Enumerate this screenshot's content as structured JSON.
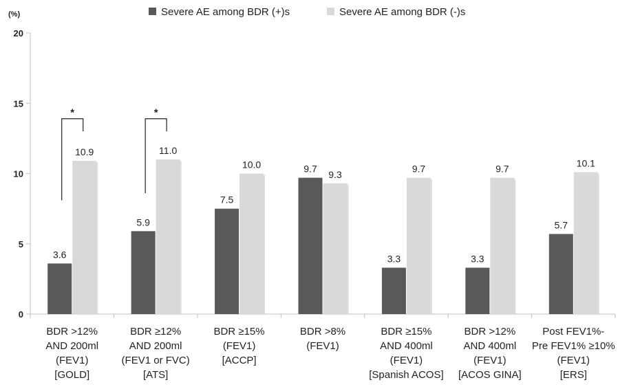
{
  "chart_data": {
    "type": "bar",
    "ylabel": "(%)",
    "ylim": [
      0,
      20
    ],
    "yticks": [
      0,
      5,
      10,
      15,
      20
    ],
    "grid": false,
    "legend_position": "top",
    "categories": [
      [
        "BDR >12%",
        "AND 200ml",
        "(FEV1)",
        "[GOLD]"
      ],
      [
        "BDR ≥12%",
        "AND 200ml",
        "(FEV1 or FVC)",
        "[ATS]"
      ],
      [
        "BDR ≥15%",
        "(FEV1)",
        "[ACCP]"
      ],
      [
        "BDR >8%",
        "(FEV1)"
      ],
      [
        "BDR ≥15%",
        "AND 400ml",
        "(FEV1)",
        "[Spanish ACOS]"
      ],
      [
        "BDR >12%",
        "AND 400ml",
        "(FEV1)",
        "[ACOS GINA]"
      ],
      [
        "Post FEV1%-",
        "Pre FEV1% ≥10%",
        "(FEV1)",
        "[ERS]"
      ]
    ],
    "series": [
      {
        "name": "Severe AE among BDR (+)s",
        "color": "#595959",
        "values": [
          3.6,
          5.9,
          7.5,
          9.7,
          3.3,
          3.3,
          5.7
        ]
      },
      {
        "name": "Severe AE among BDR (-)s",
        "color": "#d9d9d9",
        "values": [
          10.9,
          11.0,
          10.0,
          9.3,
          9.7,
          9.7,
          10.1
        ]
      }
    ],
    "data_labels": [
      [
        "3.6",
        "5.9",
        "7.5",
        "9.7",
        "3.3",
        "3.3",
        "5.7"
      ],
      [
        "10.9",
        "11.0",
        "10.0",
        "9.3",
        "9.7",
        "9.7",
        "10.1"
      ]
    ],
    "annotations": [
      {
        "category_index": 0,
        "text": "*",
        "from_value": 8.1,
        "to_value": 13.9
      },
      {
        "category_index": 1,
        "text": "*",
        "from_value": 8.6,
        "to_value": 13.9
      }
    ]
  }
}
